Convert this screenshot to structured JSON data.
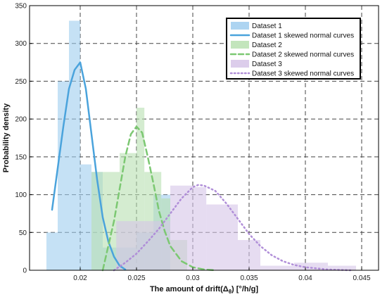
{
  "chart_data": {
    "type": "bar",
    "title": "",
    "xlabel": "The amount of drift(Δθ) [°/h/g]",
    "xlabel_parts": {
      "main": "The amount of drift(Δ",
      "sub": "θ",
      "tail": ") [°/h/g]"
    },
    "ylabel": "Probability density",
    "xlim": [
      0.0155,
      0.0465
    ],
    "ylim": [
      0,
      350
    ],
    "x_ticks": [
      0.02,
      0.025,
      0.03,
      0.035,
      0.04,
      0.045
    ],
    "x_tick_labels": [
      "0.02",
      "0.025",
      "0.03",
      "0.035",
      "0.04",
      "0.045"
    ],
    "y_ticks": [
      0,
      50,
      100,
      150,
      200,
      250,
      300,
      350
    ],
    "y_tick_labels": [
      "0",
      "50",
      "100",
      "150",
      "200",
      "250",
      "300",
      "350"
    ],
    "grid": true,
    "legend_position": "top-right",
    "series": [
      {
        "name": "Dataset 1",
        "kind": "histogram",
        "color": "#9fcdee",
        "bins": [
          {
            "x0": 0.017,
            "x1": 0.018,
            "value": 50
          },
          {
            "x0": 0.018,
            "x1": 0.019,
            "value": 250
          },
          {
            "x0": 0.019,
            "x1": 0.02,
            "value": 330
          },
          {
            "x0": 0.02,
            "x1": 0.021,
            "value": 140
          },
          {
            "x0": 0.021,
            "x1": 0.022,
            "value": 130
          },
          {
            "x0": 0.022,
            "x1": 0.0235,
            "value": 30
          },
          {
            "x0": 0.0235,
            "x1": 0.025,
            "value": 30
          },
          {
            "x0": 0.025,
            "x1": 0.0265,
            "value": 50
          },
          {
            "x0": 0.0265,
            "x1": 0.028,
            "value": 100
          }
        ]
      },
      {
        "name": "Dataset 1 skewed normal curves",
        "kind": "curve",
        "color": "#4aa3dc",
        "dash": "solid",
        "x": [
          0.0175,
          0.018,
          0.0185,
          0.019,
          0.0195,
          0.02,
          0.0205,
          0.021,
          0.0215,
          0.022,
          0.0225,
          0.023,
          0.0235,
          0.024
        ],
        "y": [
          80,
          135,
          190,
          240,
          265,
          275,
          240,
          180,
          120,
          70,
          38,
          18,
          6,
          1
        ]
      },
      {
        "name": "Dataset 2",
        "kind": "histogram",
        "color": "#b8e0b0",
        "bins": [
          {
            "x0": 0.021,
            "x1": 0.022,
            "value": 130
          },
          {
            "x0": 0.022,
            "x1": 0.0235,
            "value": 130
          },
          {
            "x0": 0.0235,
            "x1": 0.025,
            "value": 155
          },
          {
            "x0": 0.025,
            "x1": 0.0257,
            "value": 215
          },
          {
            "x0": 0.0257,
            "x1": 0.0272,
            "value": 130
          },
          {
            "x0": 0.0272,
            "x1": 0.028,
            "value": 95
          },
          {
            "x0": 0.028,
            "x1": 0.0295,
            "value": 40
          }
        ]
      },
      {
        "name": "Dataset 2 skewed normal curves",
        "kind": "curve",
        "color": "#7cc872",
        "dash": "dashed",
        "x": [
          0.022,
          0.023,
          0.024,
          0.0245,
          0.025,
          0.0255,
          0.026,
          0.0265,
          0.027,
          0.0275,
          0.028,
          0.029,
          0.03,
          0.031,
          0.032
        ],
        "y": [
          0,
          65,
          150,
          180,
          190,
          182,
          150,
          115,
          78,
          52,
          32,
          12,
          4,
          1,
          0
        ]
      },
      {
        "name": "Dataset 3",
        "kind": "histogram",
        "color": "#d6c4e8",
        "bins": [
          {
            "x0": 0.0232,
            "x1": 0.028,
            "value": 65
          },
          {
            "x0": 0.028,
            "x1": 0.03,
            "value": 112
          },
          {
            "x0": 0.03,
            "x1": 0.0312,
            "value": 110
          },
          {
            "x0": 0.0312,
            "x1": 0.034,
            "value": 87
          },
          {
            "x0": 0.034,
            "x1": 0.036,
            "value": 40
          },
          {
            "x0": 0.036,
            "x1": 0.039,
            "value": 6
          },
          {
            "x0": 0.039,
            "x1": 0.042,
            "value": 10
          },
          {
            "x0": 0.042,
            "x1": 0.0445,
            "value": 6
          }
        ]
      },
      {
        "name": "Dataset 3 skewed normal curves",
        "kind": "curve",
        "color": "#b08ed8",
        "dash": "dotted",
        "x": [
          0.023,
          0.024,
          0.025,
          0.026,
          0.027,
          0.028,
          0.029,
          0.03,
          0.0305,
          0.031,
          0.032,
          0.033,
          0.034,
          0.035,
          0.036,
          0.037,
          0.038,
          0.039,
          0.04,
          0.042,
          0.044
        ],
        "y": [
          0,
          10,
          22,
          38,
          55,
          75,
          95,
          110,
          113,
          112,
          105,
          88,
          68,
          48,
          32,
          20,
          12,
          7,
          4,
          1,
          0
        ]
      }
    ]
  }
}
